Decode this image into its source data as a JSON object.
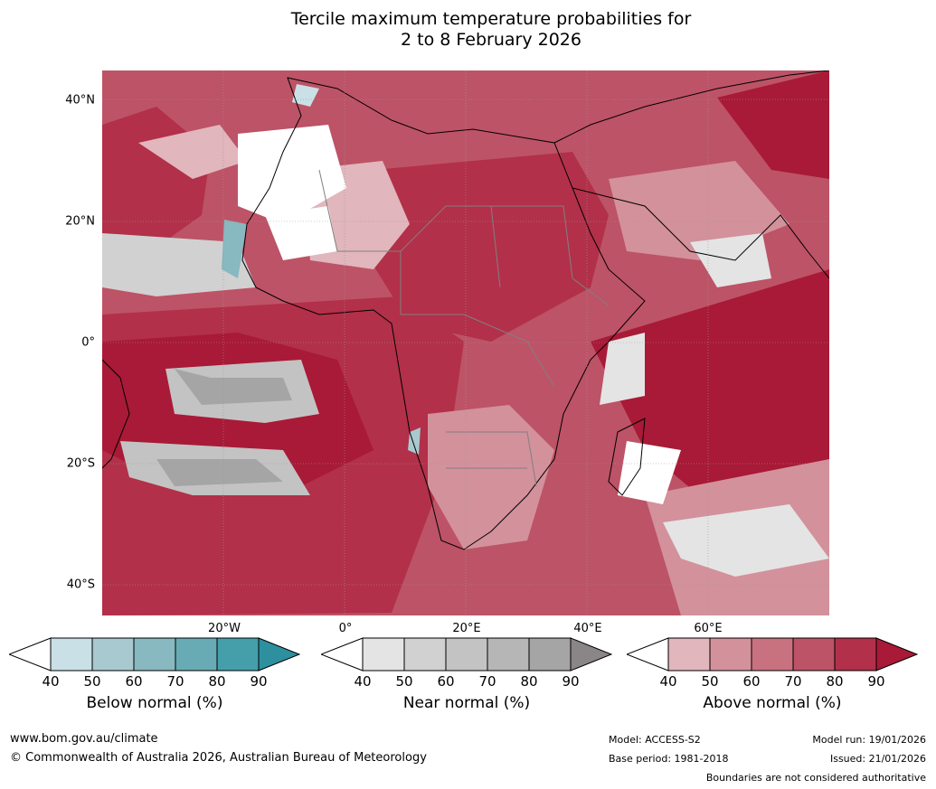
{
  "title": "Tercile maximum temperature probabilities for\n2 to 8 February 2026",
  "axes": {
    "lat_labels": [
      "40°N",
      "20°N",
      "0°",
      "20°S",
      "40°S"
    ],
    "lon_labels": [
      "20°W",
      "0°",
      "20°E",
      "40°E",
      "60°E"
    ]
  },
  "legends": [
    {
      "title": "Below normal (%)",
      "ticks": [
        "40",
        "50",
        "60",
        "70",
        "80",
        "90"
      ],
      "colors": [
        "#c9e0e6",
        "#a8c9cf",
        "#88b8c0",
        "#69abb5",
        "#459fab",
        "#2e8f9e"
      ]
    },
    {
      "title": "Near normal (%)",
      "ticks": [
        "40",
        "50",
        "60",
        "70",
        "80",
        "90"
      ],
      "colors": [
        "#e4e4e4",
        "#d1d1d1",
        "#c3c3c3",
        "#b6b6b6",
        "#a5a5a5",
        "#8a8687"
      ]
    },
    {
      "title": "Above normal (%)",
      "ticks": [
        "40",
        "50",
        "60",
        "70",
        "80",
        "90"
      ],
      "colors": [
        "#e1b6bd",
        "#d3919b",
        "#c8727f",
        "#bd5366",
        "#b23049",
        "#a81a37"
      ]
    }
  ],
  "footer": {
    "website": "www.bom.gov.au/climate",
    "copyright": "© Commonwealth of Australia 2026, Australian Bureau of Meteorology",
    "model": "Model: ACCESS-S2",
    "base_period": "Base period: 1981-2018",
    "model_run": "Model run: 19/01/2026",
    "issued": "Issued: 21/01/2026",
    "disclaimer": "Boundaries are not considered authoritative"
  }
}
